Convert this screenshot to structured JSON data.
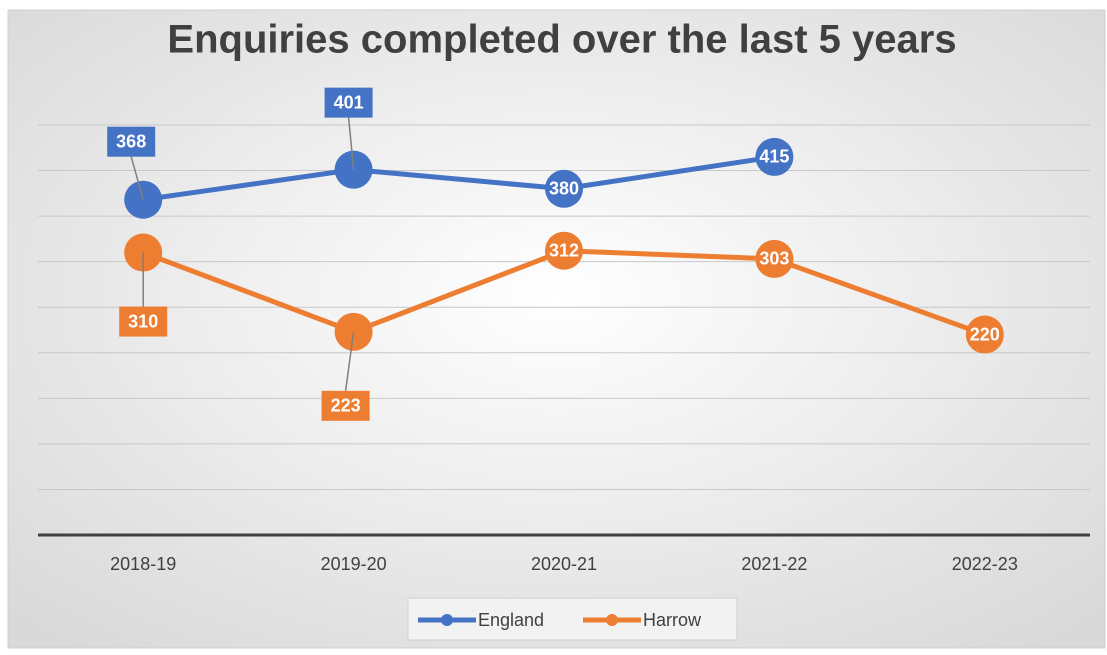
{
  "chart_data": {
    "type": "line",
    "title": "Enquiries completed over the last 5 years",
    "categories": [
      "2018-19",
      "2019-20",
      "2020-21",
      "2021-22",
      "2022-23"
    ],
    "series": [
      {
        "name": "England",
        "color": "#4472c4",
        "values": [
          368,
          401,
          380,
          415,
          null
        ]
      },
      {
        "name": "Harrow",
        "color": "#ed7d31",
        "values": [
          310,
          223,
          312,
          303,
          220
        ]
      }
    ],
    "ylim": [
      0,
      450
    ],
    "yticks": [
      0,
      50,
      100,
      150,
      200,
      250,
      300,
      350,
      400,
      450
    ],
    "grid": true,
    "legend": "bottom"
  }
}
